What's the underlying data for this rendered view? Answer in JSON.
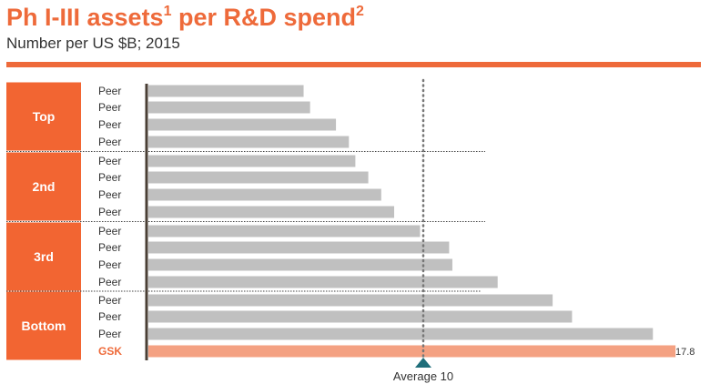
{
  "title": {
    "main_a": "Ph I-III assets",
    "sup_a": "1",
    "main_b": " per R&D spend",
    "sup_b": "2"
  },
  "subtitle": "Number per US $B; 2015",
  "colors": {
    "accent": "#EE6A3A",
    "group_box": "#F26532",
    "bar": "#C0C0C0",
    "highlight_bar": "#F4A182",
    "average_marker": "#1F6E7A"
  },
  "chart_data": {
    "type": "bar",
    "orientation": "horizontal",
    "xlim": [
      1.5,
      18.5
    ],
    "groups": [
      {
        "label": "Top",
        "rows": [
          0,
          1,
          2,
          3
        ]
      },
      {
        "label": "2nd",
        "rows": [
          4,
          5,
          6,
          7
        ]
      },
      {
        "label": "3rd",
        "rows": [
          8,
          9,
          10,
          11
        ]
      },
      {
        "label": "Bottom",
        "rows": [
          12,
          13,
          14,
          15
        ]
      }
    ],
    "categories": [
      "Peer",
      "Peer",
      "Peer",
      "Peer",
      "Peer",
      "Peer",
      "Peer",
      "Peer",
      "Peer",
      "Peer",
      "Peer",
      "Peer",
      "Peer",
      "Peer",
      "Peer",
      "GSK"
    ],
    "values": [
      6.3,
      6.5,
      7.3,
      7.7,
      7.9,
      8.3,
      8.7,
      9.1,
      9.9,
      10.8,
      10.9,
      12.3,
      14.0,
      14.6,
      17.1,
      17.8
    ],
    "highlight": "GSK",
    "data_labels": {
      "15": "17.8"
    },
    "average": {
      "value": 10,
      "label": "Average 10"
    }
  }
}
